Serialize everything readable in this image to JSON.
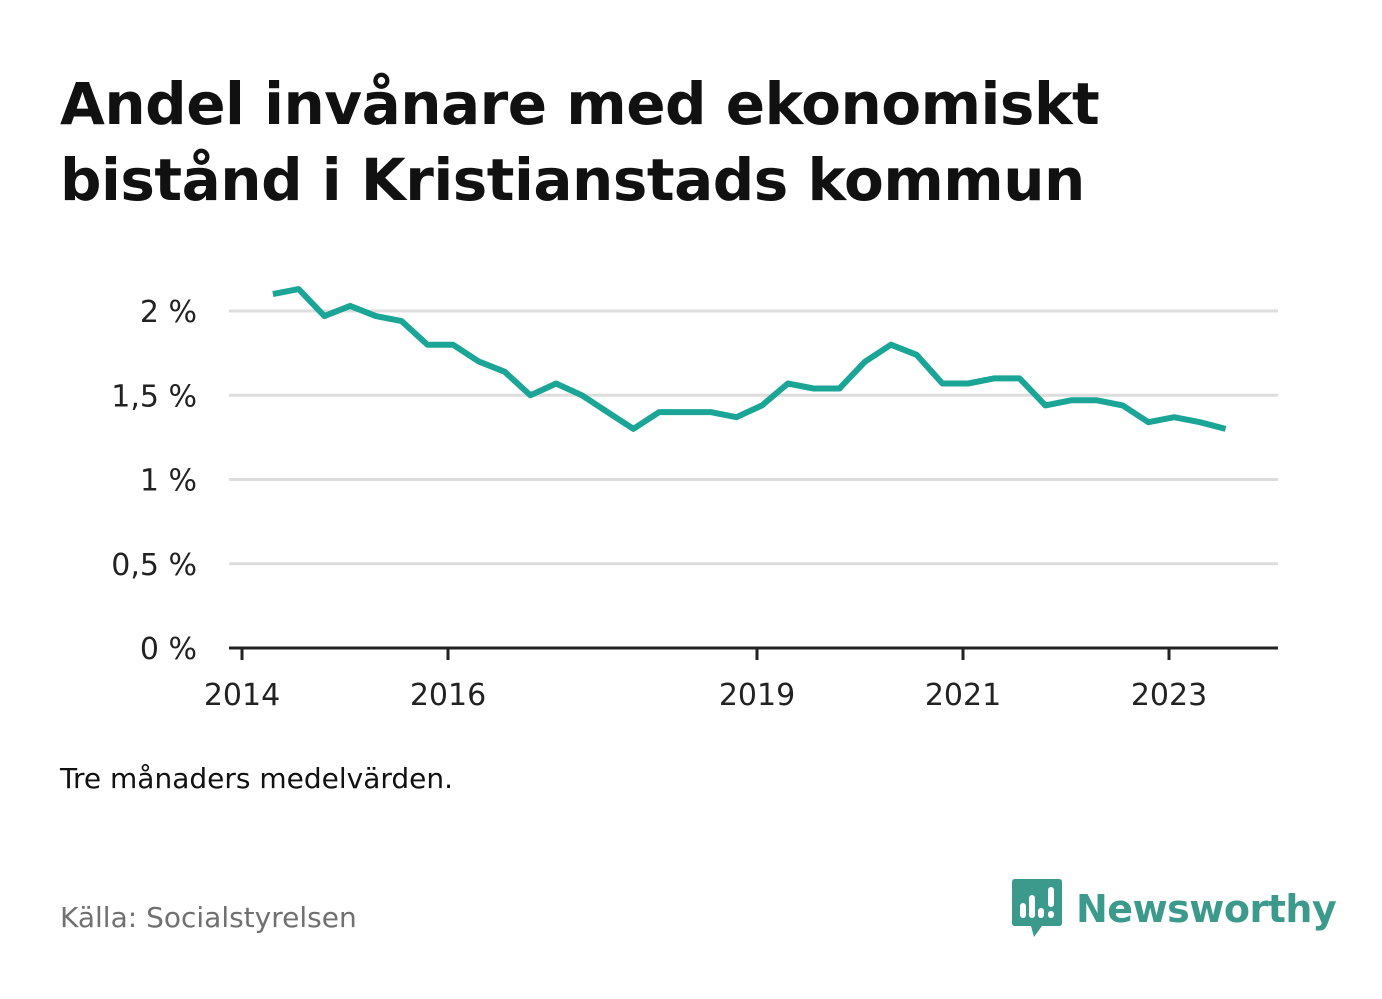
{
  "title": "Andel invånare med ekonomiskt bistånd i Kristianstads kommun",
  "note": "Tre månaders medelvärden.",
  "source": "Källa: Socialstyrelsen",
  "brand": {
    "name": "Newsworthy",
    "icon": "newsworthy-logo-icon",
    "color": "#3c9a8c"
  },
  "colors": {
    "line": "#1aa597",
    "grid": "#dddddd",
    "axis": "#222222",
    "text": "#222222"
  },
  "chart_data": {
    "type": "line",
    "title": "Andel invånare med ekonomiskt bistånd i Kristianstads kommun",
    "xlabel": "",
    "ylabel": "",
    "ylim": [
      0,
      2.2
    ],
    "yticks": [
      0,
      0.5,
      1,
      1.5,
      2
    ],
    "ytick_labels": [
      "0 %",
      "0,5 %",
      "1 %",
      "1,5 %",
      "2 %"
    ],
    "xlim": [
      2014,
      2024.25
    ],
    "xticks": [
      2014,
      2016,
      2019,
      2021,
      2023
    ],
    "xtick_labels": [
      "2014",
      "2016",
      "2019",
      "2021",
      "2023"
    ],
    "grid": true,
    "legend": "none",
    "series": [
      {
        "x": [
          2014.3,
          2014.55,
          2014.8,
          2015.05,
          2015.3,
          2015.55,
          2015.8,
          2016.05,
          2016.3,
          2016.55,
          2016.8,
          2017.05,
          2017.3,
          2017.55,
          2017.8,
          2018.05,
          2018.3,
          2018.55,
          2018.8,
          2019.05,
          2019.3,
          2019.55,
          2019.8,
          2020.05,
          2020.3,
          2020.55,
          2020.8,
          2021.05,
          2021.3,
          2021.55,
          2021.8,
          2022.05,
          2022.3,
          2022.55,
          2022.8,
          2023.05,
          2023.3,
          2023.55
        ],
        "y": [
          2.1,
          2.13,
          1.97,
          2.03,
          1.97,
          1.94,
          1.8,
          1.8,
          1.7,
          1.64,
          1.5,
          1.57,
          1.5,
          1.4,
          1.3,
          1.4,
          1.4,
          1.4,
          1.37,
          1.44,
          1.57,
          1.54,
          1.54,
          1.7,
          1.8,
          1.74,
          1.57,
          1.57,
          1.6,
          1.6,
          1.44,
          1.47,
          1.47,
          1.44,
          1.34,
          1.37,
          1.34,
          1.3
        ]
      }
    ]
  }
}
